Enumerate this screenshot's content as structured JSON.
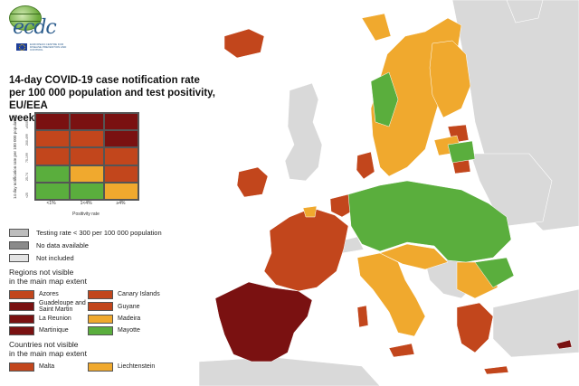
{
  "logo": {
    "wordmark": "ecdc",
    "subtitle": "EUROPEAN CENTRE FOR DISEASE PREVENTION AND CONTROL"
  },
  "title": {
    "line1": "14-day COVID-19 case notification rate",
    "line2": "per 100 000 population and test positivity, EU/EEA",
    "line3": "weeks 30 - 31"
  },
  "matrix": {
    "ylabel": "14 day notification rate per 100 000 population",
    "yticks": [
      "≥500",
      "200-499",
      "75-199",
      "25-74",
      "<25"
    ],
    "xticks": [
      "<1%",
      "1<4%",
      "≥4%"
    ],
    "xlabel": "Positivity rate",
    "cells": [
      [
        "#7a1111",
        "#7a1111",
        "#7a1111"
      ],
      [
        "#c2461c",
        "#c2461c",
        "#7a1111"
      ],
      [
        "#c2461c",
        "#c2461c",
        "#c2461c"
      ],
      [
        "#5aae3d",
        "#f0a92e",
        "#c2461c"
      ],
      [
        "#5aae3d",
        "#5aae3d",
        "#f0a92e"
      ]
    ]
  },
  "legend": {
    "testing": "Testing rate < 300 per 100 000 population",
    "nodata": "No data available",
    "notincluded": "Not included",
    "regions_title_1": "Regions not visible",
    "regions_title_2": "in the main map extent",
    "regions": [
      {
        "name": "Azores",
        "color": "#c2461c"
      },
      {
        "name": "Canary Islands",
        "color": "#c2461c"
      },
      {
        "name": "Guadeloupe and Saint Martin",
        "color": "#7a1111"
      },
      {
        "name": "Guyane",
        "color": "#c2461c"
      },
      {
        "name": "La Reunion",
        "color": "#7a1111"
      },
      {
        "name": "Madeira",
        "color": "#f0a92e"
      },
      {
        "name": "Martinique",
        "color": "#7a1111"
      },
      {
        "name": "Mayotte",
        "color": "#5aae3d"
      }
    ],
    "countries_title_1": "Countries not visible",
    "countries_title_2": "in the main map extent",
    "countries": [
      {
        "name": "Malta",
        "color": "#c2461c"
      },
      {
        "name": "Liechtenstein",
        "color": "#f0a92e"
      }
    ]
  },
  "colors": {
    "dark_red": "#7a1111",
    "red": "#c2461c",
    "orange": "#f0a92e",
    "green": "#5aae3d",
    "grey_testing": "#bdbdbd",
    "grey_nodata": "#8a8a8a",
    "grey_notincluded": "#e4e4e4",
    "sea": "#ffffff",
    "outside_land": "#d9d9d9"
  }
}
